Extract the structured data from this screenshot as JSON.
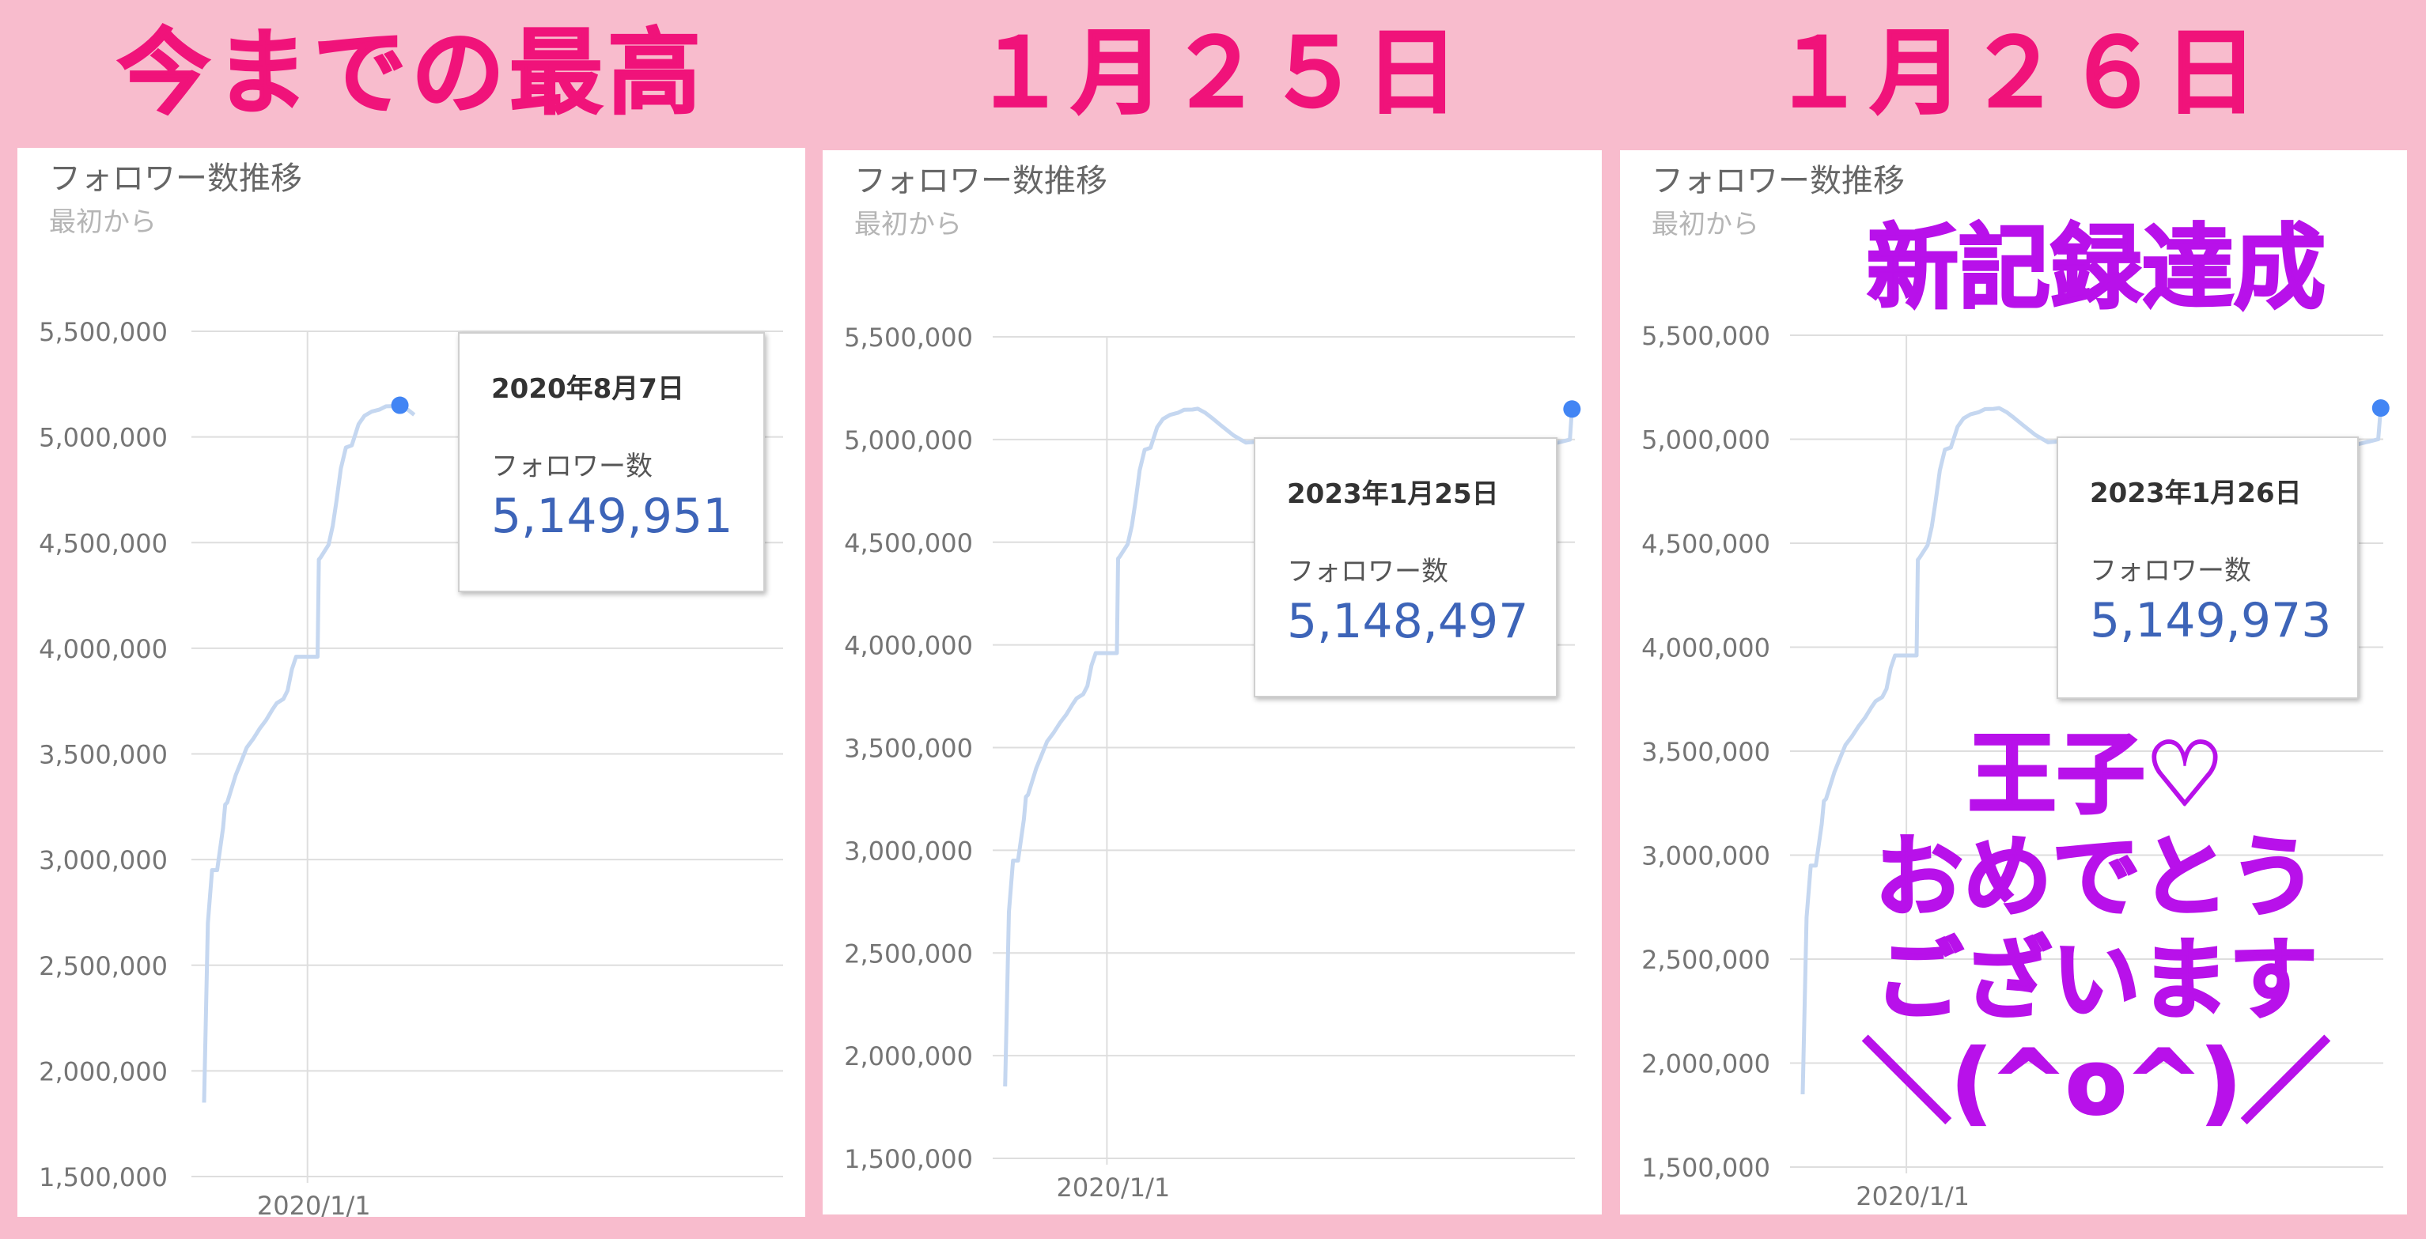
{
  "headers": [
    "今までの最高",
    "１月２５日",
    "１月２６日"
  ],
  "colors": {
    "background": "#f8bccd",
    "header_text": "#f0137a",
    "overlay_text": "#b811ea",
    "line": "#c5d7f0",
    "point": "#4285f4",
    "tooltip_value": "#3d64b8"
  },
  "overlay": {
    "record": "新記録達成",
    "congrats_lines": [
      "王子♡",
      "おめでとう",
      "ございます",
      "＼(^o^)／"
    ]
  },
  "panels": [
    {
      "title": "フォロワー数推移",
      "subtitle": "最初から",
      "tooltip": {
        "date": "2020年8月7日",
        "label": "フォロワー数",
        "value": "5,149,951"
      }
    },
    {
      "title": "フォロワー数推移",
      "subtitle": "最初から",
      "tooltip": {
        "date": "2023年1月25日",
        "label": "フォロワー数",
        "value": "5,148,497"
      }
    },
    {
      "title": "フォロワー数推移",
      "subtitle": "最初から",
      "tooltip": {
        "date": "2023年1月26日",
        "label": "フォロワー数",
        "value": "5,149,973"
      }
    }
  ],
  "chart_data": [
    {
      "type": "line",
      "title": "フォロワー数推移",
      "subtitle": "最初から",
      "ylim": [
        1500000,
        5500000
      ],
      "yticks": [
        1500000,
        2000000,
        2500000,
        3000000,
        3500000,
        4000000,
        4500000,
        5000000,
        5500000
      ],
      "ytick_labels": [
        "1,500,000",
        "2,000,000",
        "2,500,000",
        "3,000,000",
        "3,500,000",
        "4,000,000",
        "4,500,000",
        "5,000,000",
        "5,500,000"
      ],
      "xlim": [
        "2019-04-01",
        "2023-02-01"
      ],
      "xtick_dates": [
        "2020-01-01"
      ],
      "xtick_labels": [
        "2020/1/1"
      ],
      "grid": true,
      "highlight": {
        "x": "2020-08-07",
        "y": 5149951
      },
      "series": [
        {
          "x": [
            "2019-05-01",
            "2019-05-10",
            "2019-05-20",
            "2019-06-01",
            "2019-06-15",
            "2019-06-20",
            "2019-06-25",
            "2019-07-15",
            "2019-07-25",
            "2019-08-10",
            "2019-08-25",
            "2019-09-10",
            "2019-09-25",
            "2019-10-10",
            "2019-10-20",
            "2019-11-05",
            "2019-11-15",
            "2019-11-25",
            "2019-12-05",
            "2019-12-15",
            "2019-12-28",
            "2020-01-10",
            "2020-01-25",
            "2020-01-28",
            "2020-02-01",
            "2020-02-20",
            "2020-03-01",
            "2020-03-10",
            "2020-03-20",
            "2020-04-01",
            "2020-04-15",
            "2020-05-01",
            "2020-05-15",
            "2020-06-01",
            "2020-06-20",
            "2020-07-05",
            "2020-07-25",
            "2020-08-07",
            "2020-08-25",
            "2020-09-10"
          ],
          "y": [
            1850000,
            2700000,
            2950000,
            2950000,
            3150000,
            3260000,
            3270000,
            3400000,
            3450000,
            3530000,
            3570000,
            3620000,
            3660000,
            3710000,
            3740000,
            3760000,
            3800000,
            3900000,
            3960000,
            3960000,
            3960000,
            3960000,
            3960000,
            4420000,
            4430000,
            4490000,
            4580000,
            4700000,
            4850000,
            4950000,
            4960000,
            5060000,
            5100000,
            5120000,
            5130000,
            5145000,
            5146000,
            5149951,
            5130000,
            5105000
          ]
        }
      ]
    },
    {
      "type": "line",
      "title": "フォロワー数推移",
      "subtitle": "最初から",
      "ylim": [
        1500000,
        5500000
      ],
      "yticks": [
        1500000,
        2000000,
        2500000,
        3000000,
        3500000,
        4000000,
        4500000,
        5000000,
        5500000
      ],
      "ytick_labels": [
        "1,500,000",
        "2,000,000",
        "2,500,000",
        "3,000,000",
        "3,500,000",
        "4,000,000",
        "4,500,000",
        "5,000,000",
        "5,500,000"
      ],
      "xlim": [
        "2019-04-01",
        "2023-02-01"
      ],
      "xtick_dates": [
        "2020-01-01"
      ],
      "xtick_labels": [
        "2020/1/1"
      ],
      "grid": true,
      "highlight": {
        "x": "2023-01-25",
        "y": 5148497
      },
      "series": [
        {
          "x": [
            "2019-05-01",
            "2019-05-10",
            "2019-05-20",
            "2019-06-01",
            "2019-06-15",
            "2019-06-20",
            "2019-06-25",
            "2019-07-15",
            "2019-07-25",
            "2019-08-10",
            "2019-08-25",
            "2019-09-10",
            "2019-09-25",
            "2019-10-10",
            "2019-10-20",
            "2019-11-05",
            "2019-11-15",
            "2019-11-25",
            "2019-12-05",
            "2019-12-15",
            "2019-12-28",
            "2020-01-10",
            "2020-01-25",
            "2020-01-28",
            "2020-02-01",
            "2020-02-20",
            "2020-03-01",
            "2020-03-10",
            "2020-03-20",
            "2020-04-01",
            "2020-04-15",
            "2020-05-01",
            "2020-05-15",
            "2020-06-01",
            "2020-06-20",
            "2020-07-05",
            "2020-07-25",
            "2020-08-07",
            "2020-08-25",
            "2020-09-10",
            "2020-10-01",
            "2020-11-01",
            "2020-12-01",
            "2021-01-01",
            "2021-02-01",
            "2021-03-01",
            "2021-04-01",
            "2022-12-01",
            "2023-01-01",
            "2023-01-20",
            "2023-01-25"
          ],
          "y": [
            1850000,
            2700000,
            2950000,
            2950000,
            3150000,
            3260000,
            3270000,
            3400000,
            3450000,
            3530000,
            3570000,
            3620000,
            3660000,
            3710000,
            3740000,
            3760000,
            3800000,
            3900000,
            3960000,
            3960000,
            3960000,
            3960000,
            3960000,
            4420000,
            4430000,
            4490000,
            4580000,
            4700000,
            4850000,
            4950000,
            4960000,
            5060000,
            5100000,
            5120000,
            5130000,
            5145000,
            5146000,
            5149951,
            5130000,
            5105000,
            5070000,
            5020000,
            4985000,
            4990000,
            4975000,
            4965000,
            4960000,
            4975000,
            4990000,
            5000000,
            5148497
          ]
        }
      ]
    },
    {
      "type": "line",
      "title": "フォロワー数推移",
      "subtitle": "最初から",
      "ylim": [
        1500000,
        5500000
      ],
      "yticks": [
        1500000,
        2000000,
        2500000,
        3000000,
        3500000,
        4000000,
        4500000,
        5000000,
        5500000
      ],
      "ytick_labels": [
        "1,500,000",
        "2,000,000",
        "2,500,000",
        "3,000,000",
        "3,500,000",
        "4,000,000",
        "4,500,000",
        "5,000,000",
        "5,500,000"
      ],
      "xlim": [
        "2019-04-01",
        "2023-02-01"
      ],
      "xtick_dates": [
        "2020-01-01"
      ],
      "xtick_labels": [
        "2020/1/1"
      ],
      "grid": true,
      "highlight": {
        "x": "2023-01-26",
        "y": 5149973
      },
      "series": [
        {
          "x": [
            "2019-05-01",
            "2019-05-10",
            "2019-05-20",
            "2019-06-01",
            "2019-06-15",
            "2019-06-20",
            "2019-06-25",
            "2019-07-15",
            "2019-07-25",
            "2019-08-10",
            "2019-08-25",
            "2019-09-10",
            "2019-09-25",
            "2019-10-10",
            "2019-10-20",
            "2019-11-05",
            "2019-11-15",
            "2019-11-25",
            "2019-12-05",
            "2019-12-15",
            "2019-12-28",
            "2020-01-10",
            "2020-01-25",
            "2020-01-28",
            "2020-02-01",
            "2020-02-20",
            "2020-03-01",
            "2020-03-10",
            "2020-03-20",
            "2020-04-01",
            "2020-04-15",
            "2020-05-01",
            "2020-05-15",
            "2020-06-01",
            "2020-06-20",
            "2020-07-05",
            "2020-07-25",
            "2020-08-07",
            "2020-08-25",
            "2020-09-10",
            "2020-10-01",
            "2020-11-01",
            "2020-12-01",
            "2021-01-01",
            "2021-02-01",
            "2021-03-01",
            "2021-04-01",
            "2022-12-01",
            "2023-01-01",
            "2023-01-20",
            "2023-01-26"
          ],
          "y": [
            1850000,
            2700000,
            2950000,
            2950000,
            3150000,
            3260000,
            3270000,
            3400000,
            3450000,
            3530000,
            3570000,
            3620000,
            3660000,
            3710000,
            3740000,
            3760000,
            3800000,
            3900000,
            3960000,
            3960000,
            3960000,
            3960000,
            3960000,
            4420000,
            4430000,
            4490000,
            4580000,
            4700000,
            4850000,
            4950000,
            4960000,
            5060000,
            5100000,
            5120000,
            5130000,
            5145000,
            5146000,
            5149951,
            5130000,
            5105000,
            5070000,
            5020000,
            4985000,
            4990000,
            4975000,
            4965000,
            4960000,
            4975000,
            4990000,
            5000000,
            5149973
          ]
        }
      ]
    }
  ]
}
